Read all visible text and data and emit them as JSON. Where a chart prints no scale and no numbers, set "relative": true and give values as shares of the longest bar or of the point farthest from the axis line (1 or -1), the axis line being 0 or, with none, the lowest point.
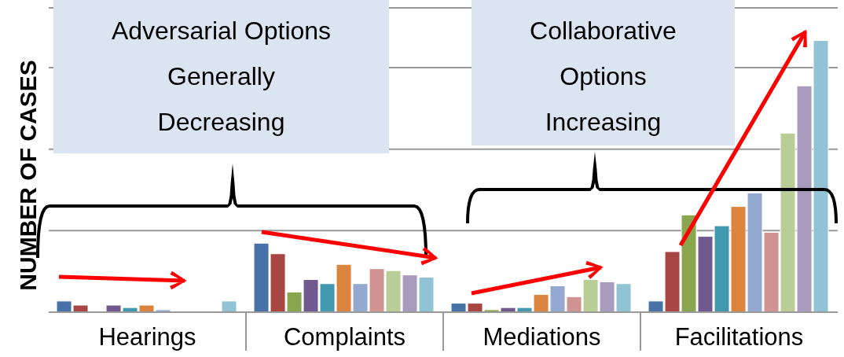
{
  "chart_data": {
    "type": "bar",
    "relative": true,
    "ylabel": "NUMBER OF CASES",
    "grid": "y",
    "legend": false,
    "categories": [
      "Hearings",
      "Complaints",
      "Mediations",
      "Facilitations"
    ],
    "annotations": [
      "Adversarial Options Generally Decreasing",
      "Collaborative Options Increasing"
    ],
    "series": [
      {
        "color": "#4672a8",
        "values": [
          0.041,
          0.254,
          0.033,
          0.041
        ]
      },
      {
        "color": "#a84643",
        "values": [
          0.026,
          0.215,
          0.033,
          0.223
        ]
      },
      {
        "color": "#89a54e",
        "values": [
          0.003,
          0.074,
          0.009,
          0.358
        ]
      },
      {
        "color": "#71588f",
        "values": [
          0.026,
          0.12,
          0.017,
          0.279
        ]
      },
      {
        "color": "#4198af",
        "values": [
          0.017,
          0.105,
          0.017,
          0.318
        ]
      },
      {
        "color": "#db843d",
        "values": [
          0.026,
          0.176,
          0.065,
          0.389
        ]
      },
      {
        "color": "#93a9cf",
        "values": [
          0.009,
          0.105,
          0.097,
          0.439
        ]
      },
      {
        "color": "#d19392",
        "values": [
          0,
          0.16,
          0.057,
          0.294
        ]
      },
      {
        "color": "#b9cd96",
        "values": [
          0.003,
          0.153,
          0.12,
          0.659
        ]
      },
      {
        "color": "#a99bbd",
        "values": [
          0,
          0.137,
          0.112,
          0.833
        ]
      },
      {
        "color": "#92c3d5",
        "values": [
          0.041,
          0.129,
          0.105,
          1
        ]
      }
    ]
  }
}
